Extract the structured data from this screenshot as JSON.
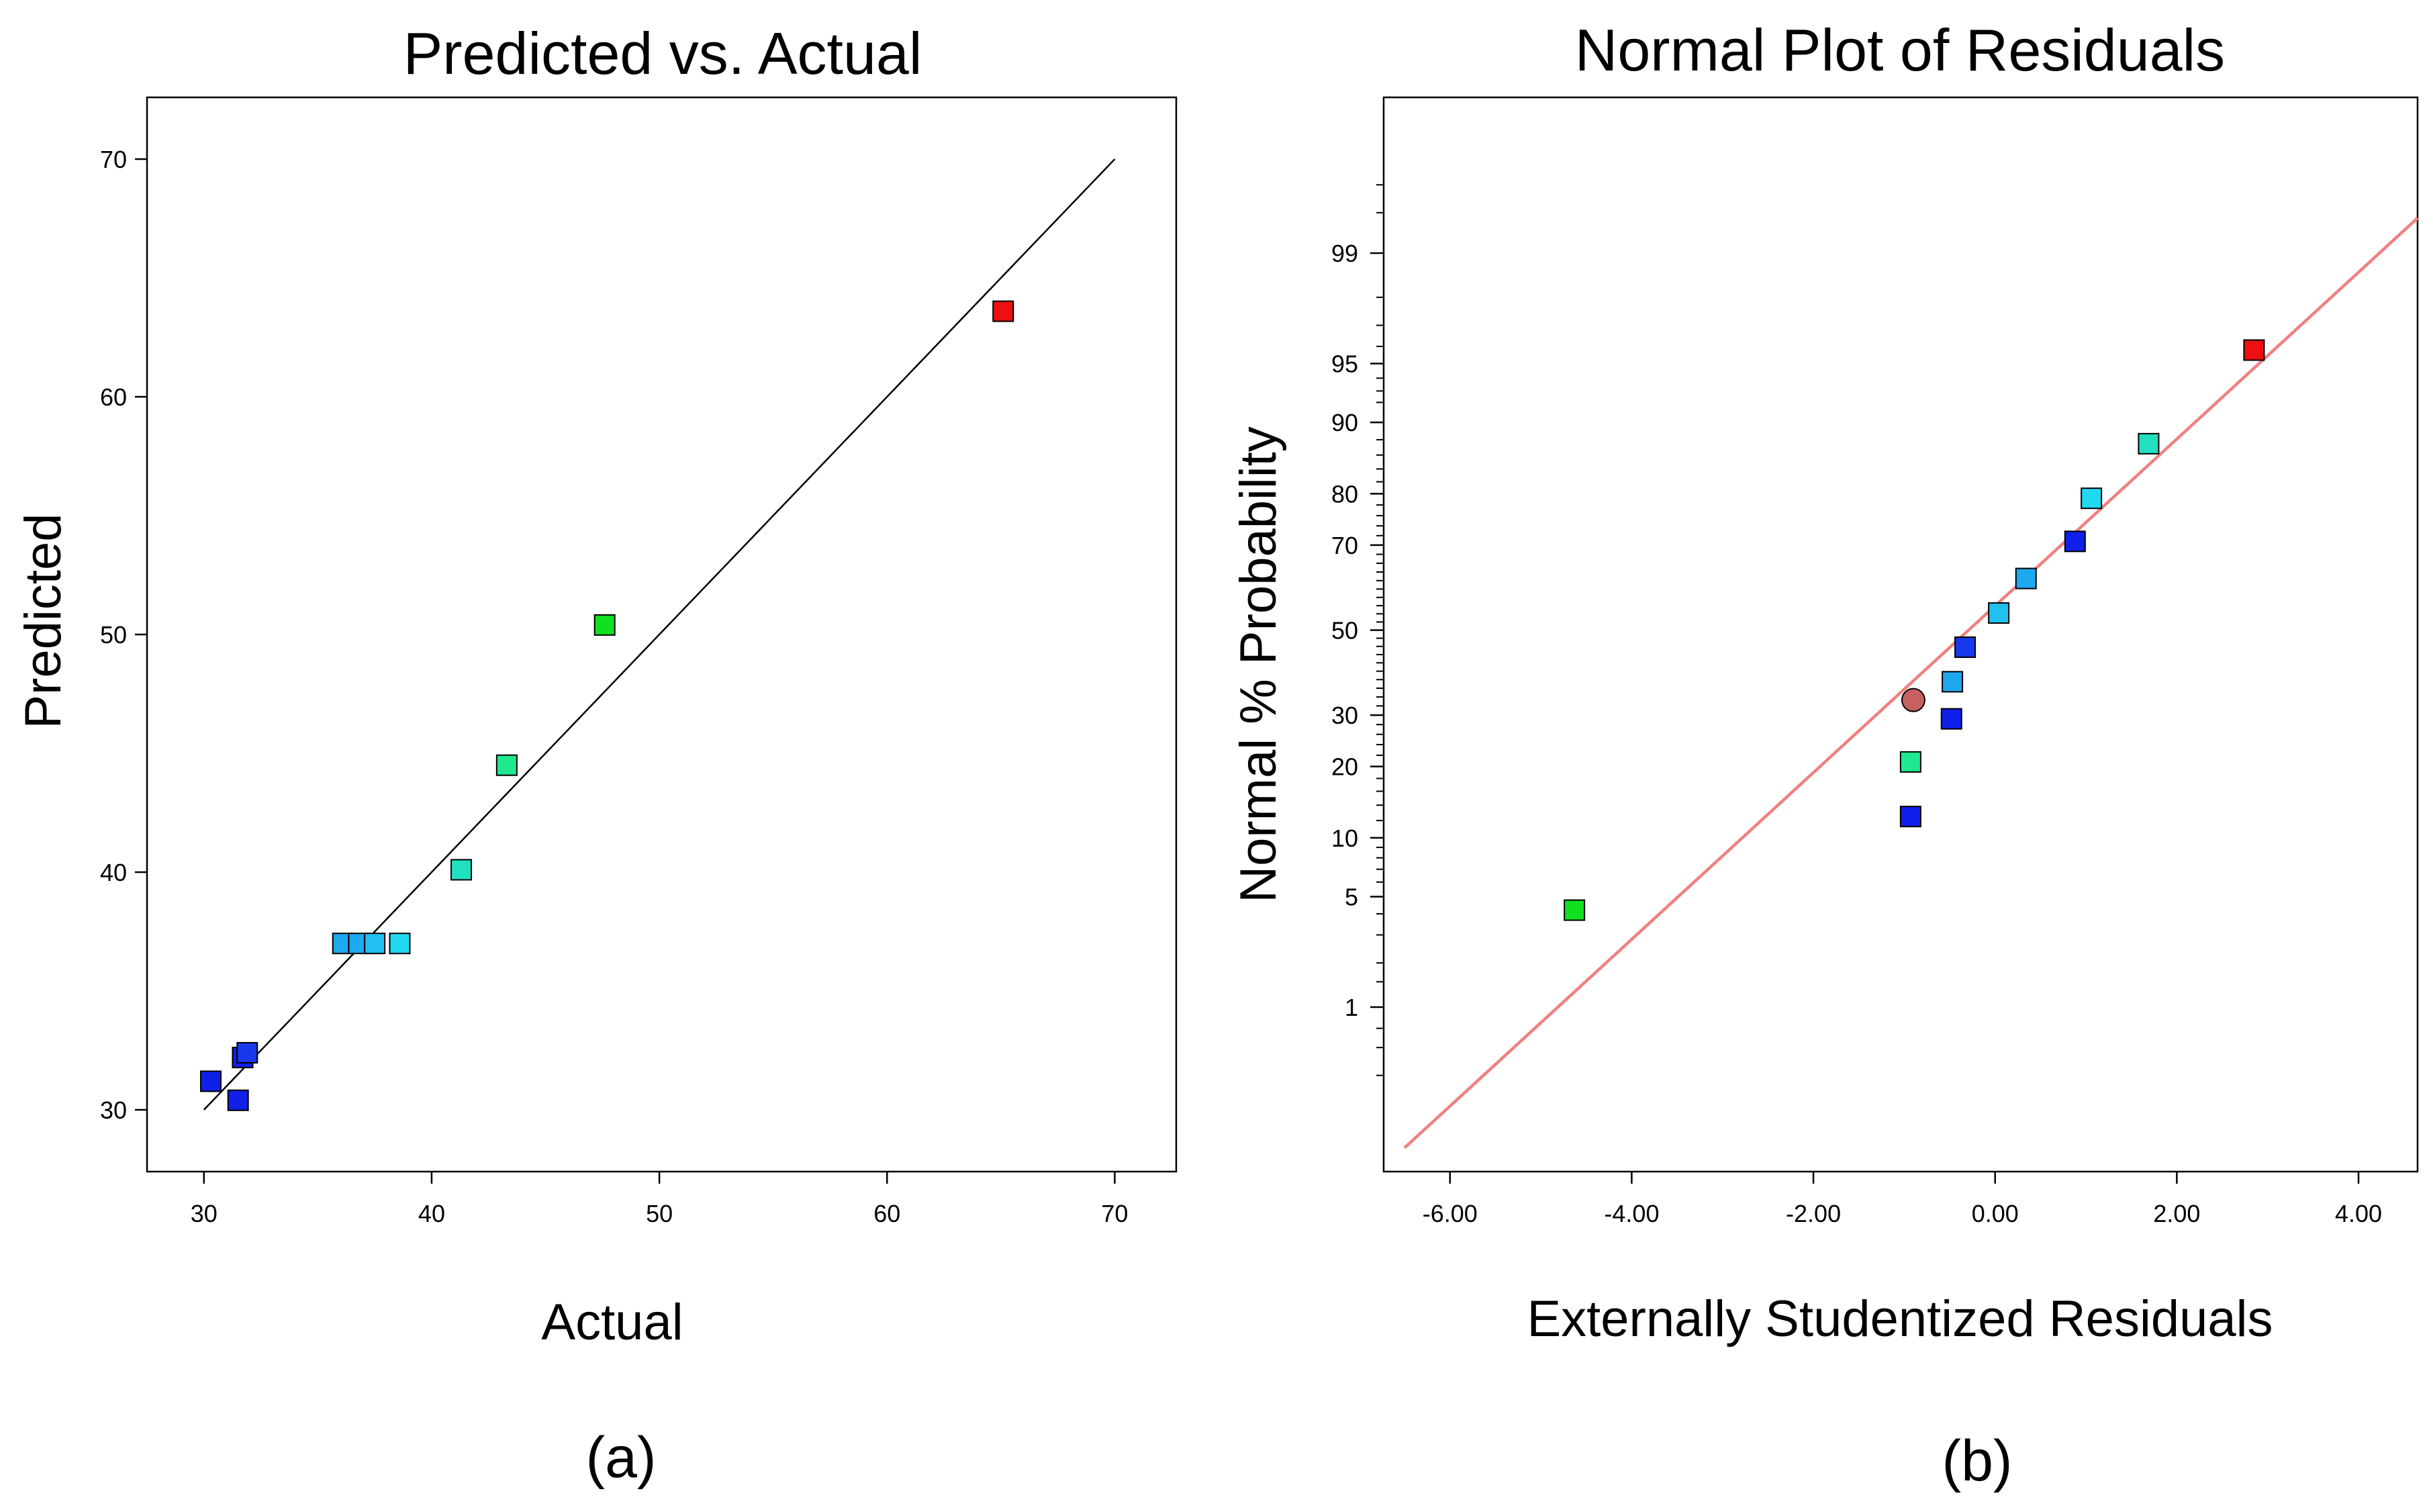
{
  "chart_data": [
    {
      "type": "scatter",
      "title": "Predicted vs. Actual",
      "xlabel": "Actual",
      "ylabel": "Predicted",
      "panel_label": "(a)",
      "xlim": [
        27.5,
        72.7
      ],
      "ylim": [
        27.4,
        72.6
      ],
      "x_ticks": [
        30,
        40,
        50,
        60,
        70
      ],
      "y_ticks": [
        30,
        40,
        50,
        60,
        70
      ],
      "reference_line": {
        "x": [
          30,
          70
        ],
        "y": [
          30,
          70
        ]
      },
      "points": [
        {
          "x": 30.3,
          "y": 31.2,
          "color": "#1020e8"
        },
        {
          "x": 31.5,
          "y": 30.4,
          "color": "#1020e8"
        },
        {
          "x": 31.7,
          "y": 32.2,
          "color": "#1020e8"
        },
        {
          "x": 31.9,
          "y": 32.4,
          "color": "#1838ec"
        },
        {
          "x": 36.1,
          "y": 37.0,
          "color": "#1ea8f0"
        },
        {
          "x": 36.8,
          "y": 37.0,
          "color": "#1ea8f0"
        },
        {
          "x": 37.5,
          "y": 37.0,
          "color": "#20c0f0"
        },
        {
          "x": 38.6,
          "y": 37.0,
          "color": "#20d8f0"
        },
        {
          "x": 41.3,
          "y": 40.1,
          "color": "#20e0c0"
        },
        {
          "x": 43.3,
          "y": 44.5,
          "color": "#20e890"
        },
        {
          "x": 47.6,
          "y": 50.4,
          "color": "#10e020"
        },
        {
          "x": 65.1,
          "y": 63.6,
          "color": "#ee1010"
        }
      ]
    },
    {
      "type": "scatter",
      "title": "Normal Plot of Residuals",
      "xlabel": "Externally Studentized Residuals",
      "ylabel": "Normal % Probability",
      "panel_label": "(b)",
      "xlim": [
        -6.73,
        4.65
      ],
      "y_scale": "normal-probability",
      "x_ticks": [
        "-6.00",
        "-4.00",
        "-2.00",
        "0.00",
        "2.00",
        "4.00"
      ],
      "y_ticks": [
        "1",
        "5",
        "10",
        "20",
        "30",
        "50",
        "70",
        "80",
        "90",
        "95",
        "99"
      ],
      "reference_line": {
        "x": [
          -6.5,
          4.65
        ],
        "y_percent": [
          0.07,
          99.45
        ],
        "color": "#f08080"
      },
      "points": [
        {
          "x": -4.63,
          "y": 4.2,
          "color": "#10e020",
          "shape": "square"
        },
        {
          "x": -0.93,
          "y": 12.5,
          "color": "#1020e8",
          "shape": "square"
        },
        {
          "x": -0.93,
          "y": 20.8,
          "color": "#20e890",
          "shape": "square"
        },
        {
          "x": -0.9,
          "y": 33.3,
          "color": "#c86060",
          "shape": "circle"
        },
        {
          "x": -0.48,
          "y": 29.2,
          "color": "#1020e8",
          "shape": "square"
        },
        {
          "x": -0.47,
          "y": 37.5,
          "color": "#1ea8f0",
          "shape": "square"
        },
        {
          "x": -0.33,
          "y": 45.8,
          "color": "#1838ec",
          "shape": "square"
        },
        {
          "x": 0.04,
          "y": 54.2,
          "color": "#20c0f0",
          "shape": "square"
        },
        {
          "x": 0.34,
          "y": 62.5,
          "color": "#1ea8f0",
          "shape": "square"
        },
        {
          "x": 0.88,
          "y": 70.8,
          "color": "#1020e8",
          "shape": "square"
        },
        {
          "x": 1.06,
          "y": 79.2,
          "color": "#20d8f0",
          "shape": "square"
        },
        {
          "x": 1.69,
          "y": 87.5,
          "color": "#20e0c0",
          "shape": "square"
        },
        {
          "x": 2.85,
          "y": 95.8,
          "color": "#ee1010",
          "shape": "square"
        }
      ]
    }
  ]
}
